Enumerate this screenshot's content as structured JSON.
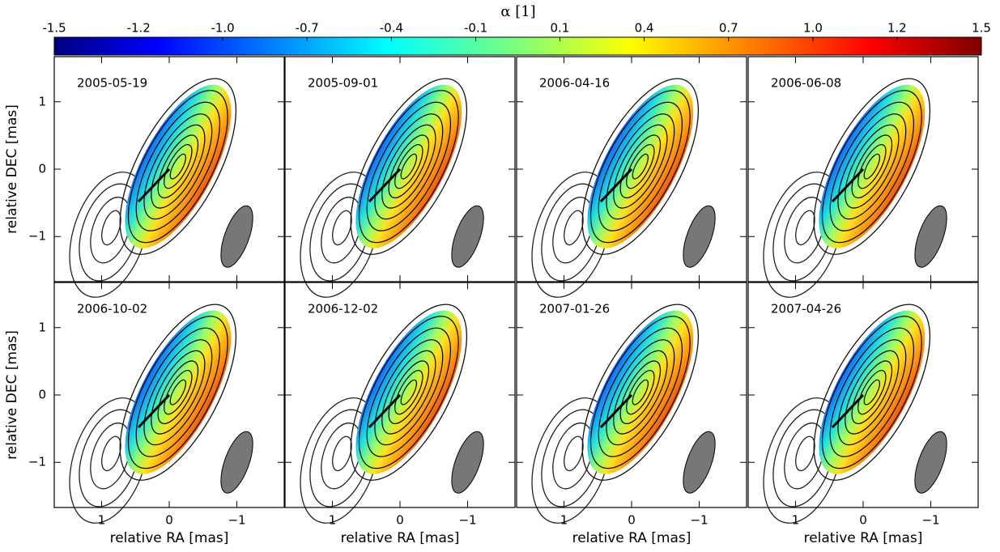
{
  "chart_data": [
    {
      "type": "colorbar",
      "title": "α [1]",
      "clim": [
        -1.5,
        1.5
      ],
      "ticks": [
        -1.5,
        {
          "value": -1.227,
          "label": "-1.2"
        },
        {
          "value": -0.955,
          "label": "-1.0"
        },
        {
          "value": -0.682,
          "label": "-0.7"
        },
        {
          "value": -0.409,
          "label": "-0.4"
        },
        {
          "value": -0.136,
          "label": "-0.1"
        },
        {
          "value": 0.136,
          "label": "0.1"
        },
        {
          "value": 0.409,
          "label": "0.4"
        },
        {
          "value": 0.682,
          "label": "0.7"
        },
        {
          "value": 0.955,
          "label": "1.0"
        },
        {
          "value": 1.227,
          "label": "1.2"
        },
        1.5
      ]
    },
    {
      "type": "map",
      "title": "2005-05-19",
      "y_label": "relative DEC [mas]",
      "xlim": [
        1.7,
        -1.7
      ],
      "ylim": [
        -1.67,
        1.67
      ],
      "xticks": [
        1,
        0,
        {
          "value": -1,
          "label": "−1"
        }
      ],
      "yticks": [
        1,
        0,
        {
          "value": -1,
          "label": "−1"
        }
      ]
    },
    {
      "type": "map",
      "title": "2005-09-01",
      "xlim": [
        1.7,
        -1.7
      ],
      "ylim": [
        -1.67,
        1.67
      ],
      "xticks": [
        1,
        0,
        {
          "value": -1,
          "label": "−1"
        }
      ],
      "yticks": [
        1,
        0,
        {
          "value": -1,
          "label": "−1"
        }
      ]
    },
    {
      "type": "map",
      "title": "2006-04-16",
      "xlim": [
        1.7,
        -1.7
      ],
      "ylim": [
        -1.67,
        1.67
      ],
      "xticks": [
        1,
        0,
        {
          "value": -1,
          "label": "−1"
        }
      ],
      "yticks": [
        1,
        0,
        {
          "value": -1,
          "label": "−1"
        }
      ]
    },
    {
      "type": "map",
      "title": "2006-06-08",
      "xlim": [
        1.7,
        -1.7
      ],
      "ylim": [
        -1.67,
        1.67
      ],
      "xticks": [
        1,
        0,
        {
          "value": -1,
          "label": "−1"
        }
      ],
      "yticks": [
        1,
        0,
        {
          "value": -1,
          "label": "−1"
        }
      ]
    },
    {
      "type": "map",
      "title": "2006-10-02",
      "x_label": "relative RA [mas]",
      "y_label": "relative DEC [mas]",
      "xlim": [
        1.7,
        -1.7
      ],
      "ylim": [
        -1.67,
        1.67
      ],
      "xticks": [
        1,
        0,
        {
          "value": -1,
          "label": "−1"
        }
      ],
      "yticks": [
        1,
        0,
        {
          "value": -1,
          "label": "−1"
        }
      ]
    },
    {
      "type": "map",
      "title": "2006-12-02",
      "x_label": "relative RA [mas]",
      "xlim": [
        1.7,
        -1.7
      ],
      "ylim": [
        -1.67,
        1.67
      ],
      "xticks": [
        1,
        0,
        {
          "value": -1,
          "label": "−1"
        }
      ],
      "yticks": [
        1,
        0,
        {
          "value": -1,
          "label": "−1"
        }
      ]
    },
    {
      "type": "map",
      "title": "2007-01-26",
      "x_label": "relative RA [mas]",
      "xlim": [
        1.7,
        -1.7
      ],
      "ylim": [
        -1.67,
        1.67
      ],
      "xticks": [
        1,
        0,
        {
          "value": -1,
          "label": "−1"
        }
      ],
      "yticks": [
        1,
        0,
        {
          "value": -1,
          "label": "−1"
        }
      ]
    },
    {
      "type": "map",
      "title": "2007-04-26",
      "x_label": "relative RA [mas]",
      "xlim": [
        1.7,
        -1.7
      ],
      "ylim": [
        -1.67,
        1.67
      ],
      "xticks": [
        1,
        0,
        {
          "value": -1,
          "label": "−1"
        }
      ],
      "yticks": [
        1,
        0,
        {
          "value": -1,
          "label": "−1"
        }
      ]
    }
  ]
}
